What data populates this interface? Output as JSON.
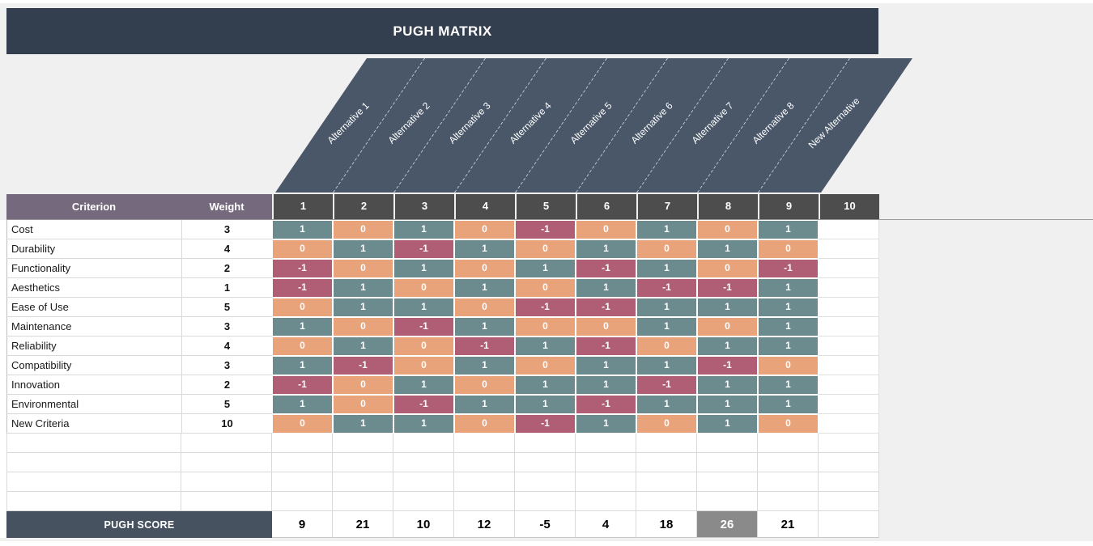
{
  "title": "PUGH MATRIX",
  "alternatives": [
    "Alternative 1",
    "Alternative 2",
    "Alternative 3",
    "Alternative 4",
    "Alternative 5",
    "Alternative 6",
    "Alternative 7",
    "Alternative 8",
    "New Alternative"
  ],
  "table": {
    "criterion_header": "Criterion",
    "weight_header": "Weight",
    "column_numbers": [
      "1",
      "2",
      "3",
      "4",
      "5",
      "6",
      "7",
      "8",
      "9",
      "10"
    ],
    "rows": [
      {
        "criterion": "Cost",
        "weight": 3,
        "scores": [
          1,
          0,
          1,
          0,
          -1,
          0,
          1,
          0,
          1
        ]
      },
      {
        "criterion": "Durability",
        "weight": 4,
        "scores": [
          0,
          1,
          -1,
          1,
          0,
          1,
          0,
          1,
          0
        ]
      },
      {
        "criterion": "Functionality",
        "weight": 2,
        "scores": [
          -1,
          0,
          1,
          0,
          1,
          -1,
          1,
          0,
          -1
        ]
      },
      {
        "criterion": "Aesthetics",
        "weight": 1,
        "scores": [
          -1,
          1,
          0,
          1,
          0,
          1,
          -1,
          -1,
          1
        ]
      },
      {
        "criterion": "Ease of Use",
        "weight": 5,
        "scores": [
          0,
          1,
          1,
          0,
          -1,
          -1,
          1,
          1,
          1
        ]
      },
      {
        "criterion": "Maintenance",
        "weight": 3,
        "scores": [
          1,
          0,
          -1,
          1,
          0,
          0,
          1,
          0,
          1
        ]
      },
      {
        "criterion": "Reliability",
        "weight": 4,
        "scores": [
          0,
          1,
          0,
          -1,
          1,
          -1,
          0,
          1,
          1
        ]
      },
      {
        "criterion": "Compatibility",
        "weight": 3,
        "scores": [
          1,
          -1,
          0,
          1,
          0,
          1,
          1,
          -1,
          0
        ]
      },
      {
        "criterion": "Innovation",
        "weight": 2,
        "scores": [
          -1,
          0,
          1,
          0,
          1,
          1,
          -1,
          1,
          1
        ]
      },
      {
        "criterion": "Environmental",
        "weight": 5,
        "scores": [
          1,
          0,
          -1,
          1,
          1,
          -1,
          1,
          1,
          1
        ]
      },
      {
        "criterion": "New Criteria",
        "weight": 10,
        "scores": [
          0,
          1,
          1,
          0,
          -1,
          1,
          0,
          1,
          0
        ]
      }
    ],
    "empty_row_count": 4,
    "score_label": "PUGH SCORE",
    "pugh_scores": [
      9,
      21,
      10,
      12,
      -5,
      4,
      18,
      26,
      21
    ],
    "best_score_column": 8
  },
  "colors": {
    "positive": "#6C8B8E",
    "zero": "#E9A37A",
    "negative": "#AF5E76",
    "title_bar": "#333F4F",
    "band": "#4A5769",
    "purple_header": "#75697D",
    "column_header": "#4D4D4D",
    "score_bar": "#475261",
    "best_score_bg": "#8A8A8A"
  }
}
